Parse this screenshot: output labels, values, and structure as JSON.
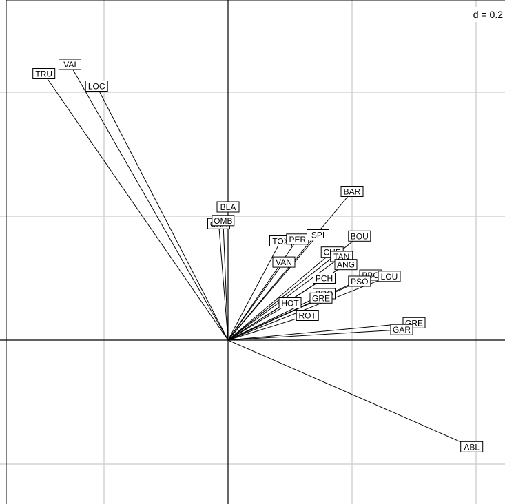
{
  "chart_data": {
    "type": "scatter",
    "subtype": "correlation-circle-arrows",
    "title": "",
    "xlabel": "",
    "ylabel": "",
    "xlim": [
      -0.37,
      0.45
    ],
    "ylim": [
      -0.24,
      0.55
    ],
    "grid": true,
    "grid_step": 0.2,
    "scale_label": "d = 0.2",
    "scale_position": "top-right",
    "points": [
      {
        "label": "VAI",
        "x": -0.255,
        "y": 0.445
      },
      {
        "label": "TRU",
        "x": -0.297,
        "y": 0.43
      },
      {
        "label": "LOC",
        "x": -0.212,
        "y": 0.41
      },
      {
        "label": "BLA",
        "x": 0.0,
        "y": 0.215
      },
      {
        "label": "CHA",
        "x": -0.015,
        "y": 0.188
      },
      {
        "label": "OMB",
        "x": -0.008,
        "y": 0.193
      },
      {
        "label": "BAR",
        "x": 0.2,
        "y": 0.24
      },
      {
        "label": "TOX",
        "x": 0.085,
        "y": 0.16
      },
      {
        "label": "PER",
        "x": 0.112,
        "y": 0.163
      },
      {
        "label": "SPI",
        "x": 0.145,
        "y": 0.17
      },
      {
        "label": "BOU",
        "x": 0.212,
        "y": 0.168
      },
      {
        "label": "VAN",
        "x": 0.09,
        "y": 0.126
      },
      {
        "label": "CHE",
        "x": 0.168,
        "y": 0.142
      },
      {
        "label": "TAN",
        "x": 0.183,
        "y": 0.135
      },
      {
        "label": "ANG",
        "x": 0.19,
        "y": 0.122
      },
      {
        "label": "BBO",
        "x": 0.23,
        "y": 0.105
      },
      {
        "label": "LOU",
        "x": 0.26,
        "y": 0.103
      },
      {
        "label": "PCH",
        "x": 0.155,
        "y": 0.1
      },
      {
        "label": "PSO",
        "x": 0.212,
        "y": 0.095
      },
      {
        "label": "BRO",
        "x": 0.155,
        "y": 0.075
      },
      {
        "label": "GRE",
        "x": 0.15,
        "y": 0.068
      },
      {
        "label": "HOT",
        "x": 0.1,
        "y": 0.06
      },
      {
        "label": "ROT",
        "x": 0.128,
        "y": 0.04
      },
      {
        "label": "GRE",
        "x": 0.3,
        "y": 0.028
      },
      {
        "label": "GAR",
        "x": 0.28,
        "y": 0.017
      },
      {
        "label": "ABL",
        "x": 0.393,
        "y": -0.172
      }
    ]
  }
}
